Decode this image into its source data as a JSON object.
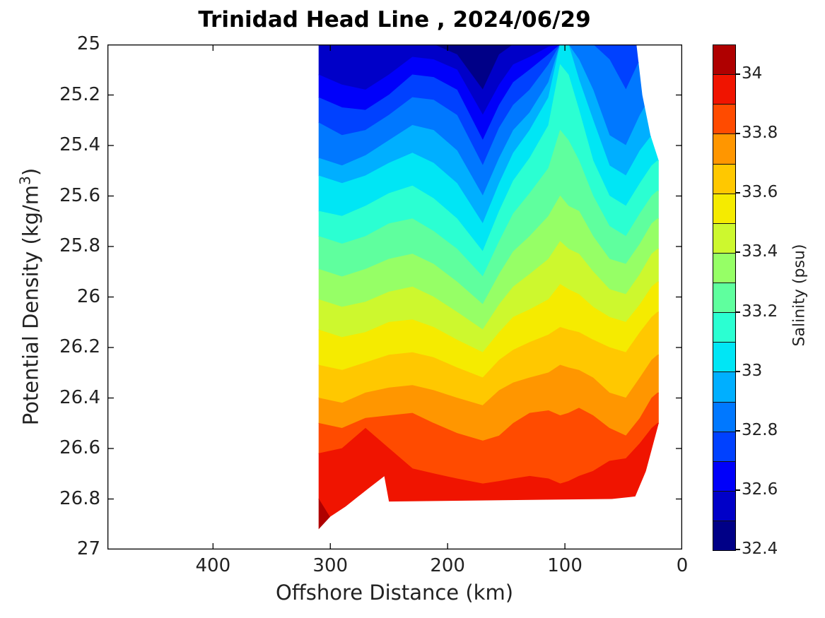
{
  "title": "Trinidad Head Line , 2024/06/29",
  "axes": {
    "x": {
      "label": "Offshore Distance (km)",
      "ticks": [
        {
          "value": 400,
          "label": "400"
        },
        {
          "value": 300,
          "label": "300"
        },
        {
          "value": 200,
          "label": "200"
        },
        {
          "value": 100,
          "label": "100"
        },
        {
          "value": 0,
          "label": "0"
        }
      ]
    },
    "y": {
      "label_prefix": "Potential Density (kg/m",
      "label_sup": "3",
      "label_suffix": ")",
      "ticks": [
        {
          "value": 25,
          "label": "25"
        },
        {
          "value": 25.2,
          "label": "25.2"
        },
        {
          "value": 25.4,
          "label": "25.4"
        },
        {
          "value": 25.6,
          "label": "25.6"
        },
        {
          "value": 25.8,
          "label": "25.8"
        },
        {
          "value": 26,
          "label": "26"
        },
        {
          "value": 26.2,
          "label": "26.2"
        },
        {
          "value": 26.4,
          "label": "26.4"
        },
        {
          "value": 26.6,
          "label": "26.6"
        },
        {
          "value": 26.8,
          "label": "26.8"
        },
        {
          "value": 27,
          "label": "27"
        }
      ]
    }
  },
  "colorbar": {
    "label": "Salinity (psu)",
    "min": 32.4,
    "max": 34.1,
    "bin_size": 0.1,
    "ticks": [
      {
        "value": 34,
        "label": "34"
      },
      {
        "value": 33.8,
        "label": "33.8"
      },
      {
        "value": 33.6,
        "label": "33.6"
      },
      {
        "value": 33.4,
        "label": "33.4"
      },
      {
        "value": 33.2,
        "label": "33.2"
      },
      {
        "value": 33,
        "label": "33"
      },
      {
        "value": 32.8,
        "label": "32.8"
      },
      {
        "value": 32.6,
        "label": "32.6"
      },
      {
        "value": 32.4,
        "label": "32.4"
      }
    ]
  },
  "chart_data": {
    "type": "filled-contour",
    "title": "Trinidad Head Line , 2024/06/29",
    "xlabel": "Offshore Distance (km)",
    "ylabel": "Potential Density (kg/m3)",
    "zlabel": "Salinity (psu)",
    "xlim": [
      0,
      490
    ],
    "x_reversed": true,
    "ylim": [
      25,
      27
    ],
    "y_reversed_depth_down": true,
    "levels_psu": [
      32.4,
      32.5,
      32.6,
      32.7,
      32.8,
      32.9,
      33.0,
      33.1,
      33.2,
      33.3,
      33.4,
      33.5,
      33.6,
      33.7,
      33.8,
      33.9,
      34.0,
      34.1
    ],
    "colors": [
      "#000087",
      "#0000C8",
      "#0000FA",
      "#0041FF",
      "#0078FF",
      "#00AFFF",
      "#00E6F5",
      "#2BFFD2",
      "#5FFF9E",
      "#96FF66",
      "#CDF82E",
      "#F5EB00",
      "#FFC800",
      "#FF9600",
      "#FF4B00",
      "#F01400",
      "#AF0000"
    ],
    "x_stations_km": [
      310,
      290,
      270,
      250,
      230,
      212,
      192,
      170,
      156,
      144,
      130,
      114,
      104,
      97,
      88,
      76,
      62,
      48,
      36,
      26,
      21
    ],
    "isohalines": [
      {
        "level": 32.5,
        "sigma": [
          25,
          25,
          25,
          25,
          25,
          25,
          25.04,
          25.18,
          25.04,
          25,
          25,
          25,
          25,
          25,
          25,
          25,
          25,
          25,
          25,
          25,
          25
        ]
      },
      {
        "level": 32.6,
        "sigma": [
          25.12,
          25.16,
          25.18,
          25.12,
          25.05,
          25.06,
          25.1,
          25.28,
          25.16,
          25.08,
          25.05,
          25.01,
          25,
          25,
          25,
          25,
          25,
          25,
          25,
          25,
          25
        ]
      },
      {
        "level": 32.7,
        "sigma": [
          25.21,
          25.25,
          25.26,
          25.2,
          25.12,
          25.13,
          25.18,
          25.38,
          25.24,
          25.15,
          25.1,
          25.04,
          25,
          25,
          25,
          25,
          25,
          25,
          25,
          25,
          25
        ]
      },
      {
        "level": 32.8,
        "sigma": [
          25.31,
          25.36,
          25.34,
          25.28,
          25.21,
          25.22,
          25.28,
          25.48,
          25.33,
          25.24,
          25.18,
          25.08,
          25,
          25,
          25,
          25,
          25.06,
          25.18,
          25.06,
          25,
          25
        ]
      },
      {
        "level": 32.9,
        "sigma": [
          25.45,
          25.48,
          25.44,
          25.38,
          25.32,
          25.34,
          25.42,
          25.6,
          25.45,
          25.34,
          25.27,
          25.15,
          25,
          25,
          25.06,
          25.18,
          25.36,
          25.4,
          25.28,
          25.2,
          25.2
        ]
      },
      {
        "level": 33.0,
        "sigma": [
          25.52,
          25.55,
          25.52,
          25.47,
          25.43,
          25.47,
          25.55,
          25.71,
          25.55,
          25.43,
          25.34,
          25.21,
          25,
          25,
          25.14,
          25.3,
          25.48,
          25.52,
          25.42,
          25.36,
          25.34
        ]
      },
      {
        "level": 33.1,
        "sigma": [
          25.66,
          25.68,
          25.64,
          25.59,
          25.56,
          25.61,
          25.69,
          25.82,
          25.66,
          25.54,
          25.45,
          25.32,
          25.08,
          25.12,
          25.26,
          25.46,
          25.6,
          25.64,
          25.55,
          25.48,
          25.46
        ]
      },
      {
        "level": 33.2,
        "sigma": [
          25.76,
          25.79,
          25.76,
          25.71,
          25.69,
          25.74,
          25.81,
          25.92,
          25.78,
          25.67,
          25.59,
          25.49,
          25.34,
          25.38,
          25.46,
          25.6,
          25.72,
          25.76,
          25.67,
          25.6,
          25.58
        ]
      },
      {
        "level": 33.3,
        "sigma": [
          25.89,
          25.92,
          25.89,
          25.85,
          25.83,
          25.87,
          25.94,
          26.03,
          25.91,
          25.82,
          25.76,
          25.68,
          25.6,
          25.64,
          25.66,
          25.76,
          25.85,
          25.87,
          25.79,
          25.71,
          25.69
        ]
      },
      {
        "level": 33.4,
        "sigma": [
          26.01,
          26.04,
          26.02,
          25.98,
          25.96,
          26.0,
          26.06,
          26.13,
          26.03,
          25.96,
          25.91,
          25.85,
          25.78,
          25.81,
          25.83,
          25.9,
          25.97,
          25.99,
          25.91,
          25.83,
          25.81
        ]
      },
      {
        "level": 33.5,
        "sigma": [
          26.13,
          26.16,
          26.14,
          26.1,
          26.09,
          26.12,
          26.17,
          26.22,
          26.14,
          26.08,
          26.05,
          26.01,
          25.95,
          25.97,
          25.99,
          26.04,
          26.08,
          26.1,
          26.03,
          25.96,
          25.94
        ]
      },
      {
        "level": 33.6,
        "sigma": [
          26.27,
          26.29,
          26.26,
          26.23,
          26.22,
          26.24,
          26.28,
          26.32,
          26.25,
          26.21,
          26.18,
          26.15,
          26.12,
          26.13,
          26.14,
          26.17,
          26.2,
          26.22,
          26.14,
          26.08,
          26.06
        ]
      },
      {
        "level": 33.7,
        "sigma": [
          26.4,
          26.42,
          26.38,
          26.36,
          26.35,
          26.37,
          26.4,
          26.43,
          26.37,
          26.34,
          26.32,
          26.3,
          26.27,
          26.28,
          26.29,
          26.32,
          26.38,
          26.4,
          26.32,
          26.25,
          26.23
        ]
      },
      {
        "level": 33.8,
        "sigma": [
          26.5,
          26.52,
          26.48,
          26.47,
          26.46,
          26.5,
          26.54,
          26.57,
          26.55,
          26.5,
          26.46,
          26.45,
          26.47,
          26.46,
          26.44,
          26.47,
          26.52,
          26.55,
          26.48,
          26.4,
          26.38
        ]
      },
      {
        "level": 33.9,
        "sigma": [
          26.62,
          26.6,
          26.52,
          26.6,
          26.68,
          26.7,
          26.72,
          26.74,
          26.73,
          26.72,
          26.71,
          26.72,
          26.74,
          26.73,
          26.71,
          26.69,
          26.65,
          26.64,
          26.58,
          26.52,
          26.5
        ]
      },
      {
        "level": 34.0,
        "sigma": [
          26.8,
          26.95,
          27.3,
          27.3,
          27.3,
          27.3,
          27.3,
          27.3,
          27.3,
          27.3,
          27.3,
          27.3,
          27.3,
          27.3,
          27.3,
          27.3,
          27.3,
          27.3,
          27.3,
          27.3,
          27.3
        ]
      }
    ],
    "outline_km_sigma": [
      [
        310,
        25
      ],
      [
        39,
        25
      ],
      [
        34,
        25.2
      ],
      [
        27,
        25.36
      ],
      [
        20,
        25.46
      ],
      [
        20,
        26.5
      ],
      [
        31,
        26.69
      ],
      [
        40,
        26.79
      ],
      [
        60,
        26.8
      ],
      [
        250,
        26.81
      ],
      [
        254,
        26.71
      ],
      [
        268,
        26.76
      ],
      [
        287,
        26.83
      ],
      [
        300,
        26.87
      ],
      [
        310,
        26.92
      ]
    ],
    "surface_sigma": 25,
    "bottom_clip_sigma": 27.3
  }
}
